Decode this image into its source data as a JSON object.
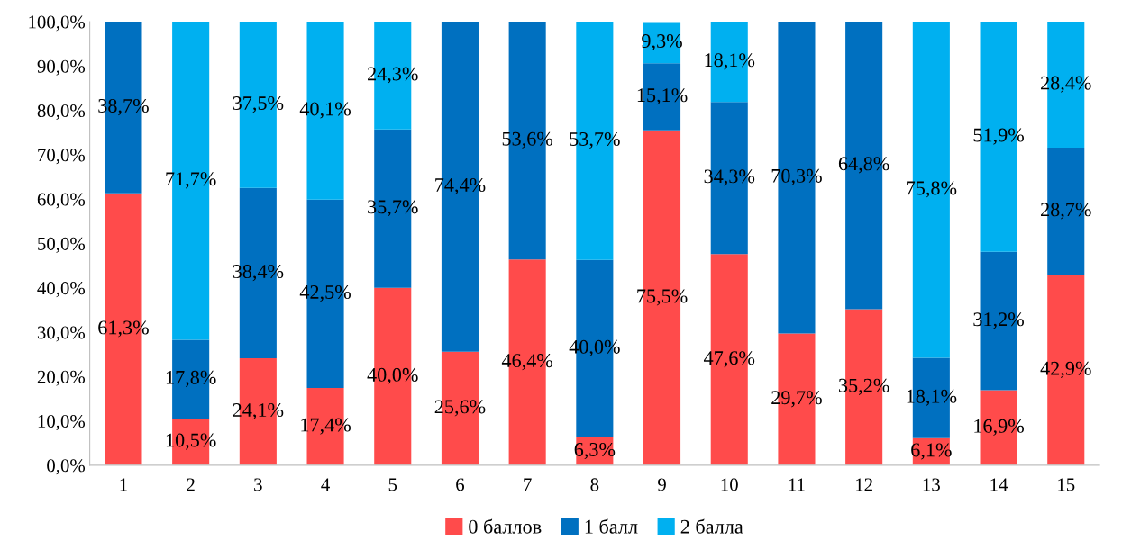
{
  "chart_data": {
    "type": "bar",
    "stacked": true,
    "categories": [
      "1",
      "2",
      "3",
      "4",
      "5",
      "6",
      "7",
      "8",
      "9",
      "10",
      "11",
      "12",
      "13",
      "14",
      "15"
    ],
    "series": [
      {
        "name": "0 баллов",
        "color": "#ff4b4b",
        "values": [
          61.3,
          10.5,
          24.1,
          17.4,
          40.0,
          25.6,
          46.4,
          6.3,
          75.5,
          47.6,
          29.7,
          35.2,
          6.1,
          16.9,
          42.9
        ],
        "value_labels": [
          "61,3%",
          "10,5%",
          "24,1%",
          "17,4%",
          "40,0%",
          "25,6%",
          "46,4%",
          "6,3%",
          "75,5%",
          "47,6%",
          "29,7%",
          "35,2%",
          "6,1%",
          "16,9%",
          "42,9%"
        ]
      },
      {
        "name": "1 балл",
        "color": "#0070c0",
        "values": [
          38.7,
          17.8,
          38.4,
          42.5,
          35.7,
          74.4,
          53.6,
          40.0,
          15.1,
          34.3,
          70.3,
          64.8,
          18.1,
          31.2,
          28.7
        ],
        "value_labels": [
          "38,7%",
          "17,8%",
          "38,4%",
          "42,5%",
          "35,7%",
          "74,4%",
          "53,6%",
          "40,0%",
          "15,1%",
          "34,3%",
          "70,3%",
          "64,8%",
          "18,1%",
          "31,2%",
          "28,7%"
        ]
      },
      {
        "name": "2 балла",
        "color": "#00b0f0",
        "values": [
          0,
          71.7,
          37.5,
          40.1,
          24.3,
          0,
          0,
          53.7,
          9.3,
          18.1,
          0,
          0,
          75.8,
          51.9,
          28.4
        ],
        "value_labels": [
          null,
          "71,7%",
          "37,5%",
          "40,1%",
          "24,3%",
          null,
          null,
          "53,7%",
          "9,3%",
          "18,1%",
          null,
          null,
          "75,8%",
          "51,9%",
          "28,4%"
        ]
      }
    ],
    "ylim": [
      0,
      100
    ],
    "yticks": [
      {
        "value": 0,
        "label": "0,0%"
      },
      {
        "value": 10,
        "label": "10,0%"
      },
      {
        "value": 20,
        "label": "20,0%"
      },
      {
        "value": 30,
        "label": "30,0%"
      },
      {
        "value": 40,
        "label": "40,0%"
      },
      {
        "value": 50,
        "label": "50,0%"
      },
      {
        "value": 60,
        "label": "60,0%"
      },
      {
        "value": 70,
        "label": "70,0%"
      },
      {
        "value": 80,
        "label": "80,0%"
      },
      {
        "value": 90,
        "label": "90,0%"
      },
      {
        "value": 100,
        "label": "100,0%"
      }
    ],
    "legend": "bottom",
    "grid": false
  }
}
